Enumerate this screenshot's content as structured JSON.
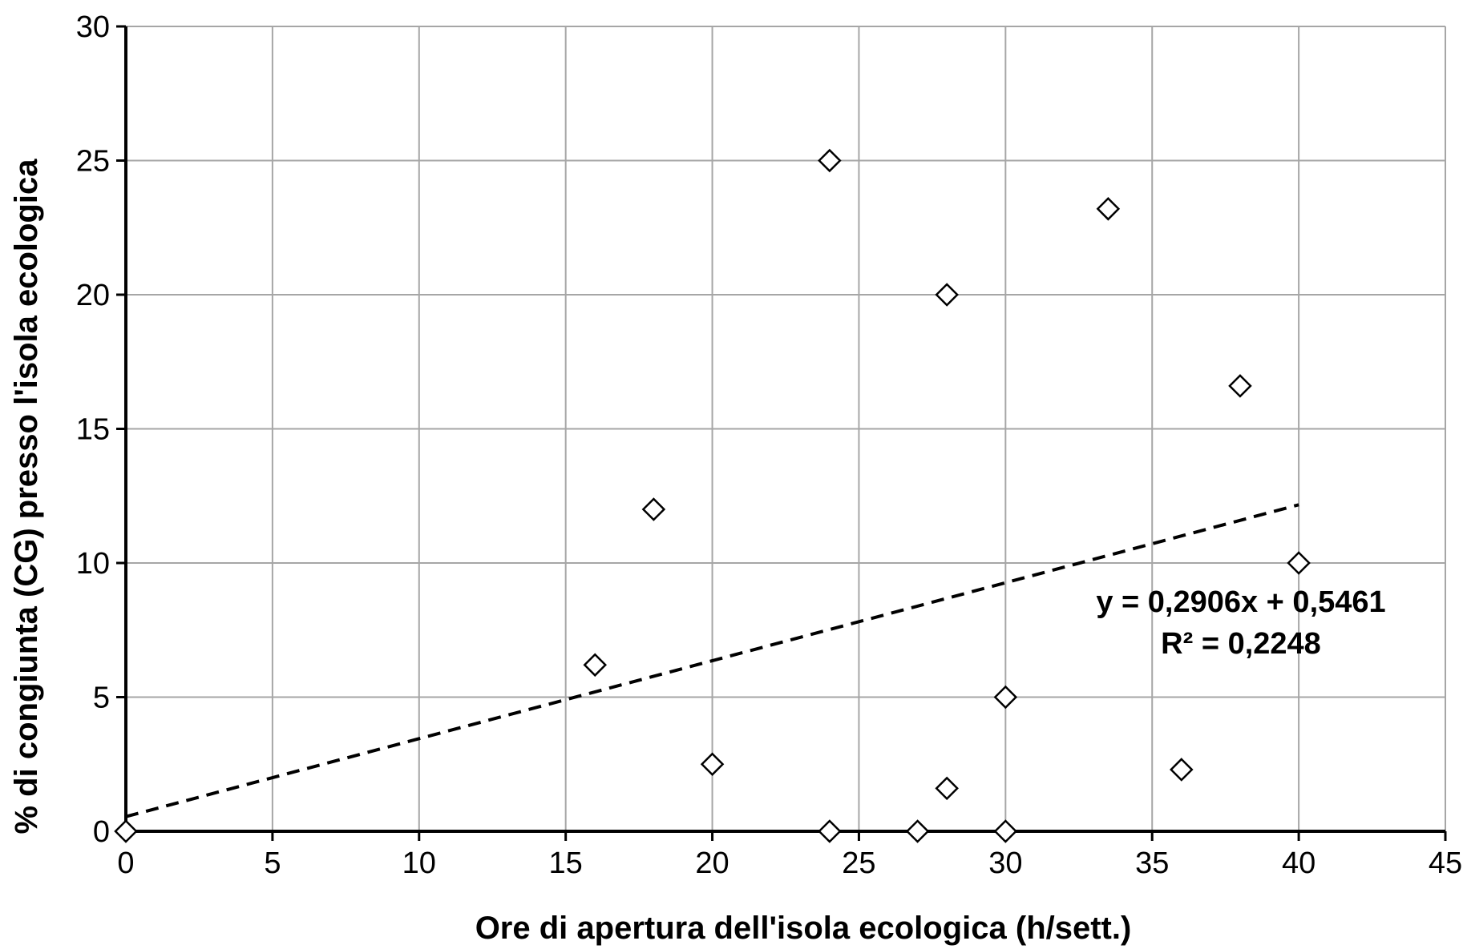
{
  "chart_data": {
    "type": "scatter",
    "title": "",
    "xlabel": "Ore di apertura dell'isola ecologica (h/sett.)",
    "ylabel": "% di congiunta (CG) presso l'isola ecologica",
    "xlim": [
      0,
      45
    ],
    "ylim": [
      0,
      30
    ],
    "x_ticks": [
      0,
      5,
      10,
      15,
      20,
      25,
      30,
      35,
      40,
      45
    ],
    "y_ticks": [
      0,
      5,
      10,
      15,
      20,
      25,
      30
    ],
    "grid": true,
    "legend": "none",
    "marker": "diamond-open",
    "series": [
      {
        "points": [
          {
            "x": 0,
            "y": 0
          },
          {
            "x": 16,
            "y": 6.2
          },
          {
            "x": 18,
            "y": 12
          },
          {
            "x": 20,
            "y": 2.5
          },
          {
            "x": 24,
            "y": 25
          },
          {
            "x": 24,
            "y": 0
          },
          {
            "x": 27,
            "y": 0
          },
          {
            "x": 28,
            "y": 20
          },
          {
            "x": 28,
            "y": 1.6
          },
          {
            "x": 30,
            "y": 5
          },
          {
            "x": 30,
            "y": 0
          },
          {
            "x": 33.5,
            "y": 23.2
          },
          {
            "x": 36,
            "y": 2.3
          },
          {
            "x": 38,
            "y": 16.6
          },
          {
            "x": 40,
            "y": 10
          }
        ]
      }
    ],
    "trendline": {
      "type": "linear",
      "style": "dashed",
      "slope": 0.2906,
      "intercept": 0.5461,
      "x_range": [
        0,
        40
      ],
      "equation": "y = 0,2906x + 0,5461",
      "r2": "R² = 0,2248"
    }
  }
}
